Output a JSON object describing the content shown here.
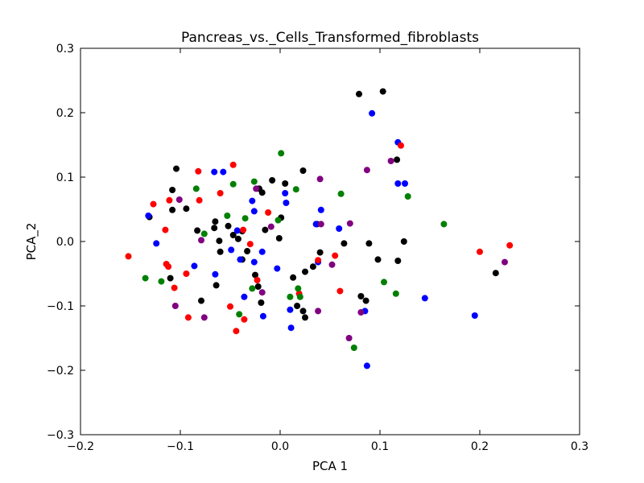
{
  "chart_data": {
    "type": "scatter",
    "title": "Pancreas_vs._Cells_Transformed_fibroblasts",
    "xlabel": "PCA 1",
    "ylabel": "PCA_2",
    "xlim": [
      -0.2,
      0.3
    ],
    "ylim": [
      -0.3,
      0.3
    ],
    "x_ticks": [
      -0.2,
      -0.1,
      0.0,
      0.1,
      0.2,
      0.3
    ],
    "x_tick_labels": [
      "−0.2",
      "−0.1",
      "0.0",
      "0.1",
      "0.2",
      "0.3"
    ],
    "y_ticks": [
      -0.3,
      -0.2,
      -0.1,
      0.0,
      0.1,
      0.2,
      0.3
    ],
    "y_tick_labels": [
      "−0.3",
      "−0.2",
      "−0.1",
      "0.0",
      "0.1",
      "0.2",
      "0.3"
    ],
    "grid": false,
    "legend": "none",
    "series": [
      {
        "color": "#000000",
        "points": [
          [
            0.079,
            0.229
          ],
          [
            0.103,
            0.233
          ],
          [
            0.117,
            0.127
          ],
          [
            -0.104,
            0.113
          ],
          [
            -0.008,
            0.095
          ],
          [
            -0.021,
            0.082
          ],
          [
            -0.018,
            0.076
          ],
          [
            0.005,
            0.09
          ],
          [
            0.023,
            0.11
          ],
          [
            -0.108,
            0.08
          ],
          [
            -0.108,
            0.049
          ],
          [
            -0.094,
            0.051
          ],
          [
            -0.065,
            0.031
          ],
          [
            -0.052,
            0.024
          ],
          [
            -0.038,
            0.016
          ],
          [
            -0.083,
            0.017
          ],
          [
            -0.066,
            0.021
          ],
          [
            -0.131,
            0.038
          ],
          [
            -0.061,
            0.001
          ],
          [
            -0.042,
            0.004
          ],
          [
            0.001,
            0.037
          ],
          [
            -0.001,
            0.005
          ],
          [
            -0.06,
            -0.016
          ],
          [
            -0.047,
            0.01
          ],
          [
            0.04,
            -0.017
          ],
          [
            0.064,
            -0.003
          ],
          [
            0.089,
            -0.003
          ],
          [
            0.098,
            -0.028
          ],
          [
            0.124,
            0.0
          ],
          [
            0.118,
            -0.03
          ],
          [
            0.216,
            -0.049
          ],
          [
            -0.038,
            -0.028
          ],
          [
            -0.025,
            -0.052
          ],
          [
            0.013,
            -0.056
          ],
          [
            0.025,
            -0.047
          ],
          [
            0.033,
            -0.039
          ],
          [
            -0.11,
            -0.057
          ],
          [
            -0.079,
            -0.092
          ],
          [
            -0.064,
            -0.068
          ],
          [
            -0.019,
            -0.095
          ],
          [
            0.017,
            -0.1
          ],
          [
            0.023,
            -0.108
          ],
          [
            0.025,
            -0.118
          ],
          [
            0.081,
            -0.085
          ],
          [
            0.086,
            -0.092
          ],
          [
            -0.015,
            0.018
          ],
          [
            -0.033,
            -0.015
          ],
          [
            0.037,
            0.027
          ],
          [
            -0.022,
            -0.07
          ]
        ]
      },
      {
        "color": "#0000ff",
        "points": [
          [
            0.092,
            0.199
          ],
          [
            0.118,
            0.154
          ],
          [
            0.118,
            0.09
          ],
          [
            0.125,
            0.09
          ],
          [
            -0.066,
            0.108
          ],
          [
            -0.057,
            0.108
          ],
          [
            0.005,
            0.075
          ],
          [
            -0.028,
            0.063
          ],
          [
            -0.026,
            0.047
          ],
          [
            0.006,
            0.06
          ],
          [
            0.041,
            0.049
          ],
          [
            0.036,
            0.027
          ],
          [
            0.059,
            0.02
          ],
          [
            -0.043,
            0.017
          ],
          [
            -0.049,
            -0.013
          ],
          [
            -0.04,
            -0.028
          ],
          [
            -0.018,
            -0.016
          ],
          [
            -0.026,
            -0.032
          ],
          [
            -0.003,
            -0.042
          ],
          [
            -0.124,
            -0.003
          ],
          [
            -0.132,
            0.04
          ],
          [
            -0.086,
            -0.038
          ],
          [
            0.038,
            -0.032
          ],
          [
            -0.065,
            -0.051
          ],
          [
            -0.036,
            -0.086
          ],
          [
            -0.017,
            -0.116
          ],
          [
            0.01,
            -0.106
          ],
          [
            0.011,
            -0.134
          ],
          [
            0.085,
            -0.108
          ],
          [
            0.087,
            -0.193
          ],
          [
            0.145,
            -0.088
          ],
          [
            0.195,
            -0.115
          ]
        ]
      },
      {
        "color": "#ff0000",
        "points": [
          [
            0.121,
            0.149
          ],
          [
            -0.047,
            0.119
          ],
          [
            -0.127,
            0.058
          ],
          [
            -0.111,
            0.064
          ],
          [
            -0.081,
            0.064
          ],
          [
            -0.06,
            0.075
          ],
          [
            -0.082,
            0.109
          ],
          [
            -0.012,
            0.045
          ],
          [
            -0.037,
            0.018
          ],
          [
            -0.03,
            -0.004
          ],
          [
            -0.115,
            0.018
          ],
          [
            -0.152,
            -0.023
          ],
          [
            -0.114,
            -0.035
          ],
          [
            -0.112,
            -0.039
          ],
          [
            -0.094,
            -0.05
          ],
          [
            -0.106,
            -0.072
          ],
          [
            -0.05,
            -0.101
          ],
          [
            -0.044,
            -0.139
          ],
          [
            -0.036,
            -0.121
          ],
          [
            -0.092,
            -0.118
          ],
          [
            -0.023,
            -0.06
          ],
          [
            0.019,
            -0.081
          ],
          [
            0.038,
            -0.029
          ],
          [
            0.055,
            -0.022
          ],
          [
            0.06,
            -0.077
          ],
          [
            0.2,
            -0.016
          ],
          [
            0.23,
            -0.006
          ]
        ]
      },
      {
        "color": "#008000",
        "points": [
          [
            0.001,
            0.137
          ],
          [
            -0.026,
            0.093
          ],
          [
            -0.047,
            0.089
          ],
          [
            -0.084,
            0.082
          ],
          [
            0.016,
            0.081
          ],
          [
            0.061,
            0.074
          ],
          [
            0.128,
            0.07
          ],
          [
            0.164,
            0.027
          ],
          [
            -0.053,
            0.04
          ],
          [
            -0.035,
            0.036
          ],
          [
            -0.002,
            0.033
          ],
          [
            -0.076,
            0.012
          ],
          [
            -0.135,
            -0.057
          ],
          [
            -0.119,
            -0.062
          ],
          [
            -0.028,
            -0.073
          ],
          [
            0.01,
            -0.086
          ],
          [
            0.02,
            -0.086
          ],
          [
            0.018,
            -0.073
          ],
          [
            0.104,
            -0.063
          ],
          [
            0.116,
            -0.081
          ],
          [
            -0.041,
            -0.113
          ],
          [
            0.074,
            -0.165
          ]
        ]
      },
      {
        "color": "#800080",
        "points": [
          [
            0.111,
            0.125
          ],
          [
            0.087,
            0.111
          ],
          [
            0.04,
            0.097
          ],
          [
            -0.101,
            0.065
          ],
          [
            -0.024,
            0.082
          ],
          [
            -0.009,
            0.023
          ],
          [
            0.041,
            0.027
          ],
          [
            0.07,
            0.028
          ],
          [
            -0.079,
            0.002
          ],
          [
            -0.018,
            -0.079
          ],
          [
            0.052,
            -0.036
          ],
          [
            0.038,
            -0.108
          ],
          [
            -0.105,
            -0.1
          ],
          [
            -0.076,
            -0.118
          ],
          [
            0.069,
            -0.15
          ],
          [
            0.225,
            -0.032
          ],
          [
            0.081,
            -0.11
          ]
        ]
      }
    ]
  }
}
